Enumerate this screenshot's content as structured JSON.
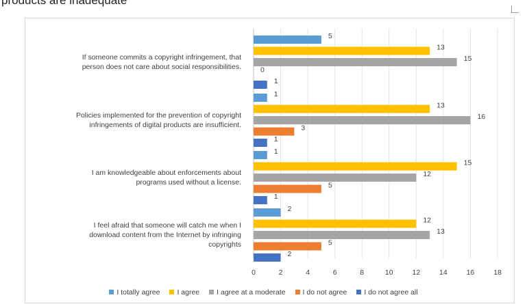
{
  "page": {
    "heading_fragment": "products are inadequate"
  },
  "chart_data": {
    "type": "bar",
    "orientation": "horizontal",
    "title": "",
    "xlabel": "",
    "ylabel": "",
    "xlim": [
      0,
      18
    ],
    "xticks": [
      0,
      2,
      4,
      6,
      8,
      10,
      12,
      14,
      16,
      18
    ],
    "grid": true,
    "legend_position": "bottom",
    "categories": [
      "If someone commits a copyright infringement, that person does not care about social responsibilities.",
      "Policies implemented for the prevention of copyright infringements of digital products are insufficient.",
      "I am knowledgeable about enforcements about programs used without a license.",
      "I feel afraid that someone will catch me when I download content from the Internet by infringing copyrights"
    ],
    "category_lines": [
      [
        "If someone commits a copyright infringement, that",
        "person does not care about social responsibilities."
      ],
      [
        "Policies implemented for the prevention of copyright",
        "infringements of digital products are insufficient."
      ],
      [
        "I am knowledgeable about enforcements about",
        "programs used without a license."
      ],
      [
        "I feel afraid that someone will catch me when I",
        "download content from the Internet by infringing",
        "copyrights"
      ]
    ],
    "series": [
      {
        "name": "I totally agree",
        "color": "#5b9bd5",
        "values": [
          5,
          1,
          1,
          2
        ]
      },
      {
        "name": "I agree",
        "color": "#ffc000",
        "values": [
          13,
          13,
          15,
          12
        ]
      },
      {
        "name": "I agree at a moderate",
        "color": "#a5a5a5",
        "values": [
          15,
          16,
          12,
          13
        ]
      },
      {
        "name": "I do not agree",
        "color": "#ed7d31",
        "values": [
          0,
          3,
          5,
          5
        ]
      },
      {
        "name": "I do not agree all",
        "color": "#4472c4",
        "values": [
          1,
          1,
          1,
          2
        ]
      }
    ]
  }
}
